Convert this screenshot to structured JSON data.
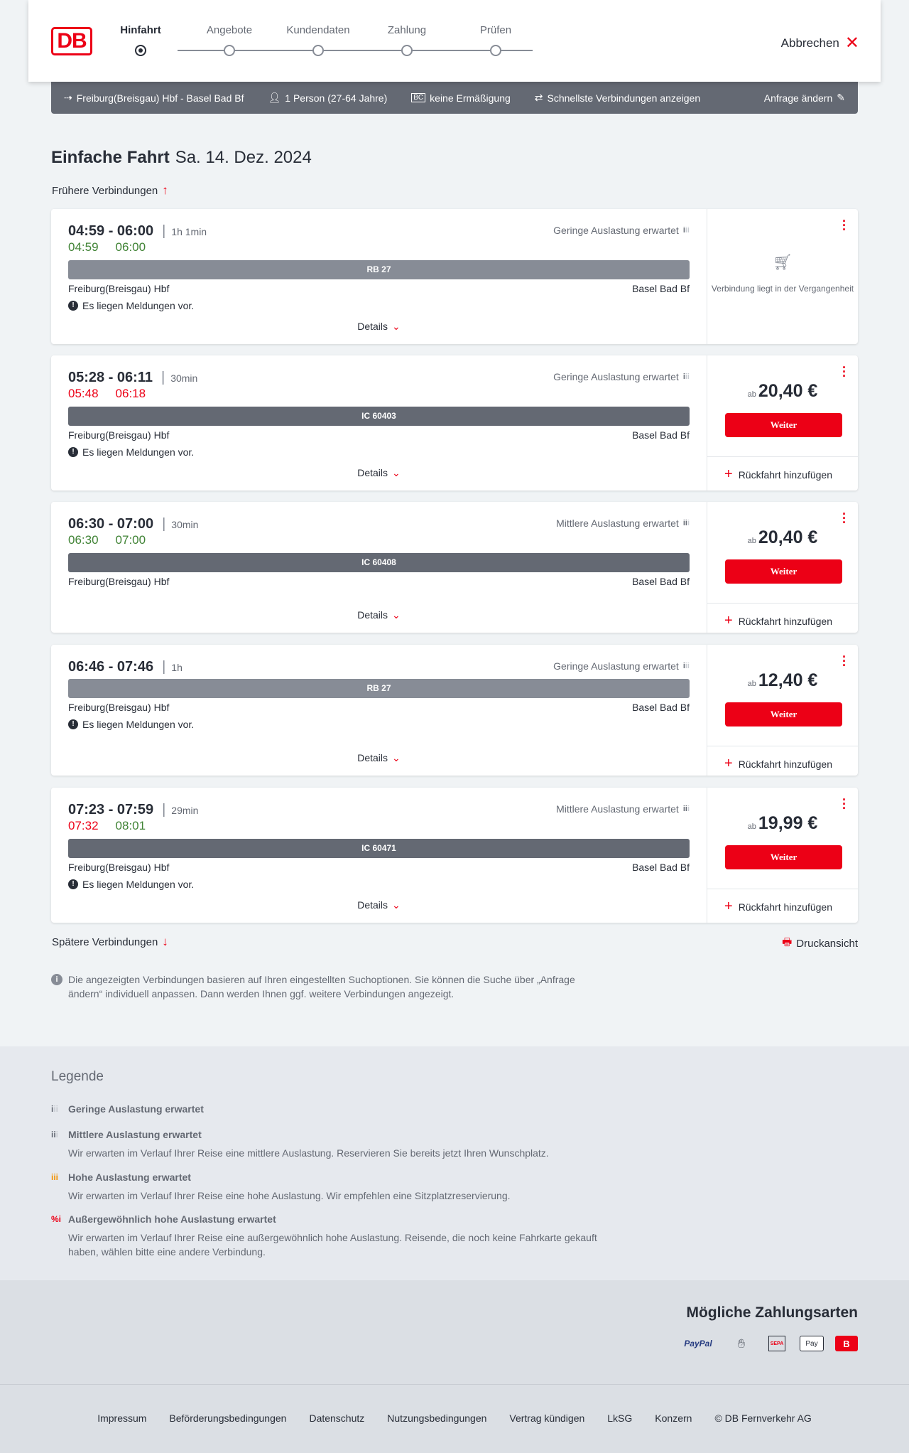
{
  "header": {
    "logo": "DB",
    "steps": [
      "Hinfahrt",
      "Angebote",
      "Kundendaten",
      "Zahlung",
      "Prüfen"
    ],
    "active_step": 0,
    "cancel": "Abbrechen"
  },
  "search_bar": {
    "route": "Freiburg(Breisgau) Hbf - Basel Bad Bf",
    "passengers": "1 Person (27-64 Jahre)",
    "discount": "keine Ermäßigung",
    "option": "Schnellste Verbindungen anzeigen",
    "edit": "Anfrage ändern"
  },
  "title": {
    "type": "Einfache Fahrt",
    "date": "Sa. 14. Dez. 2024"
  },
  "earlier": "Frühere Verbindungen",
  "later": "Spätere Verbindungen",
  "print": "Druckansicht",
  "colors": {
    "accent": "#ec0016",
    "on_time": "#408335",
    "delay": "#ec0016",
    "regional_bar": "#878c96",
    "ic_bar": "#646973"
  },
  "connections": [
    {
      "time": "04:59 - 06:00",
      "duration": "1h 1min",
      "load": "Geringe Auslastung erwartet",
      "rt_dep": "04:59",
      "rt_arr": "06:00",
      "dep_delayed": false,
      "arr_delayed": false,
      "train": "RB 27",
      "from": "Freiburg(Breisgau) Hbf",
      "to": "Basel Bad Bf",
      "message": "Es liegen Meldungen vor.",
      "details": "Details",
      "past": "Verbindung liegt in der Vergangenheit"
    },
    {
      "time": "05:28 - 06:11",
      "duration": "30min",
      "load": "Geringe Auslastung erwartet",
      "rt_dep": "05:48",
      "rt_arr": "06:18",
      "dep_delayed": true,
      "arr_delayed": true,
      "train": "IC 60403",
      "from": "Freiburg(Breisgau) Hbf",
      "to": "Basel Bad Bf",
      "message": "Es liegen Meldungen vor.",
      "details": "Details",
      "price_prefix": "ab",
      "price": "20,40 €",
      "button": "Weiter",
      "return": "Rückfahrt hinzufügen"
    },
    {
      "time": "06:30 - 07:00",
      "duration": "30min",
      "load": "Mittlere Auslastung erwartet",
      "rt_dep": "06:30",
      "rt_arr": "07:00",
      "dep_delayed": false,
      "arr_delayed": false,
      "train": "IC 60408",
      "from": "Freiburg(Breisgau) Hbf",
      "to": "Basel Bad Bf",
      "details": "Details",
      "price_prefix": "ab",
      "price": "20,40 €",
      "button": "Weiter",
      "return": "Rückfahrt hinzufügen"
    },
    {
      "time": "06:46 - 07:46",
      "duration": "1h",
      "load": "Geringe Auslastung erwartet",
      "train": "RB 27",
      "from": "Freiburg(Breisgau) Hbf",
      "to": "Basel Bad Bf",
      "message": "Es liegen Meldungen vor.",
      "details": "Details",
      "price_prefix": "ab",
      "price": "12,40 €",
      "button": "Weiter",
      "return": "Rückfahrt hinzufügen"
    },
    {
      "time": "07:23 - 07:59",
      "duration": "29min",
      "load": "Mittlere Auslastung erwartet",
      "rt_dep": "07:32",
      "rt_arr": "08:01",
      "dep_delayed": true,
      "arr_delayed": false,
      "train": "IC 60471",
      "from": "Freiburg(Breisgau) Hbf",
      "to": "Basel Bad Bf",
      "message": "Es liegen Meldungen vor.",
      "details": "Details",
      "price_prefix": "ab",
      "price": "19,99 €",
      "button": "Weiter",
      "return": "Rückfahrt hinzufügen"
    }
  ],
  "info": "Die angezeigten Verbindungen basieren auf Ihren eingestellten Suchoptionen. Sie können die Suche über „Anfrage ändern“ individuell anpassen. Dann werden Ihnen ggf. weitere Verbindungen angezeigt.",
  "legend": {
    "title": "Legende",
    "items": [
      {
        "label": "Geringe Auslastung erwartet",
        "icon": "low-load-icon"
      },
      {
        "label": "Mittlere Auslastung erwartet",
        "text": "Wir erwarten im Verlauf Ihrer Reise eine mittlere Auslastung. Reservieren Sie bereits jetzt Ihren Wunschplatz.",
        "icon": "medium-load-icon"
      },
      {
        "label": "Hohe Auslastung erwartet",
        "text": "Wir erwarten im Verlauf Ihrer Reise eine hohe Auslastung. Wir empfehlen eine Sitzplatzreservierung.",
        "icon": "high-load-icon"
      },
      {
        "label": "Außergewöhnlich hohe Auslastung erwartet",
        "text": "Wir erwarten im Verlauf Ihrer Reise eine außergewöhnlich hohe Auslastung. Reisende, die noch keine Fahrkarte gekauft haben, wählen bitte eine andere Verbindung.",
        "icon": "very-high-load-icon"
      }
    ]
  },
  "payment": {
    "title": "Mögliche Zahlungsarten",
    "methods": [
      "PayPal",
      "Kreditkarte",
      "SEPA",
      "Apple Pay",
      "DB Bonus"
    ]
  },
  "footer": [
    "Impressum",
    "Beförderungsbedingungen",
    "Datenschutz",
    "Nutzungsbedingungen",
    "Vertrag kündigen",
    "LkSG",
    "Konzern",
    "© DB Fernverkehr AG"
  ]
}
